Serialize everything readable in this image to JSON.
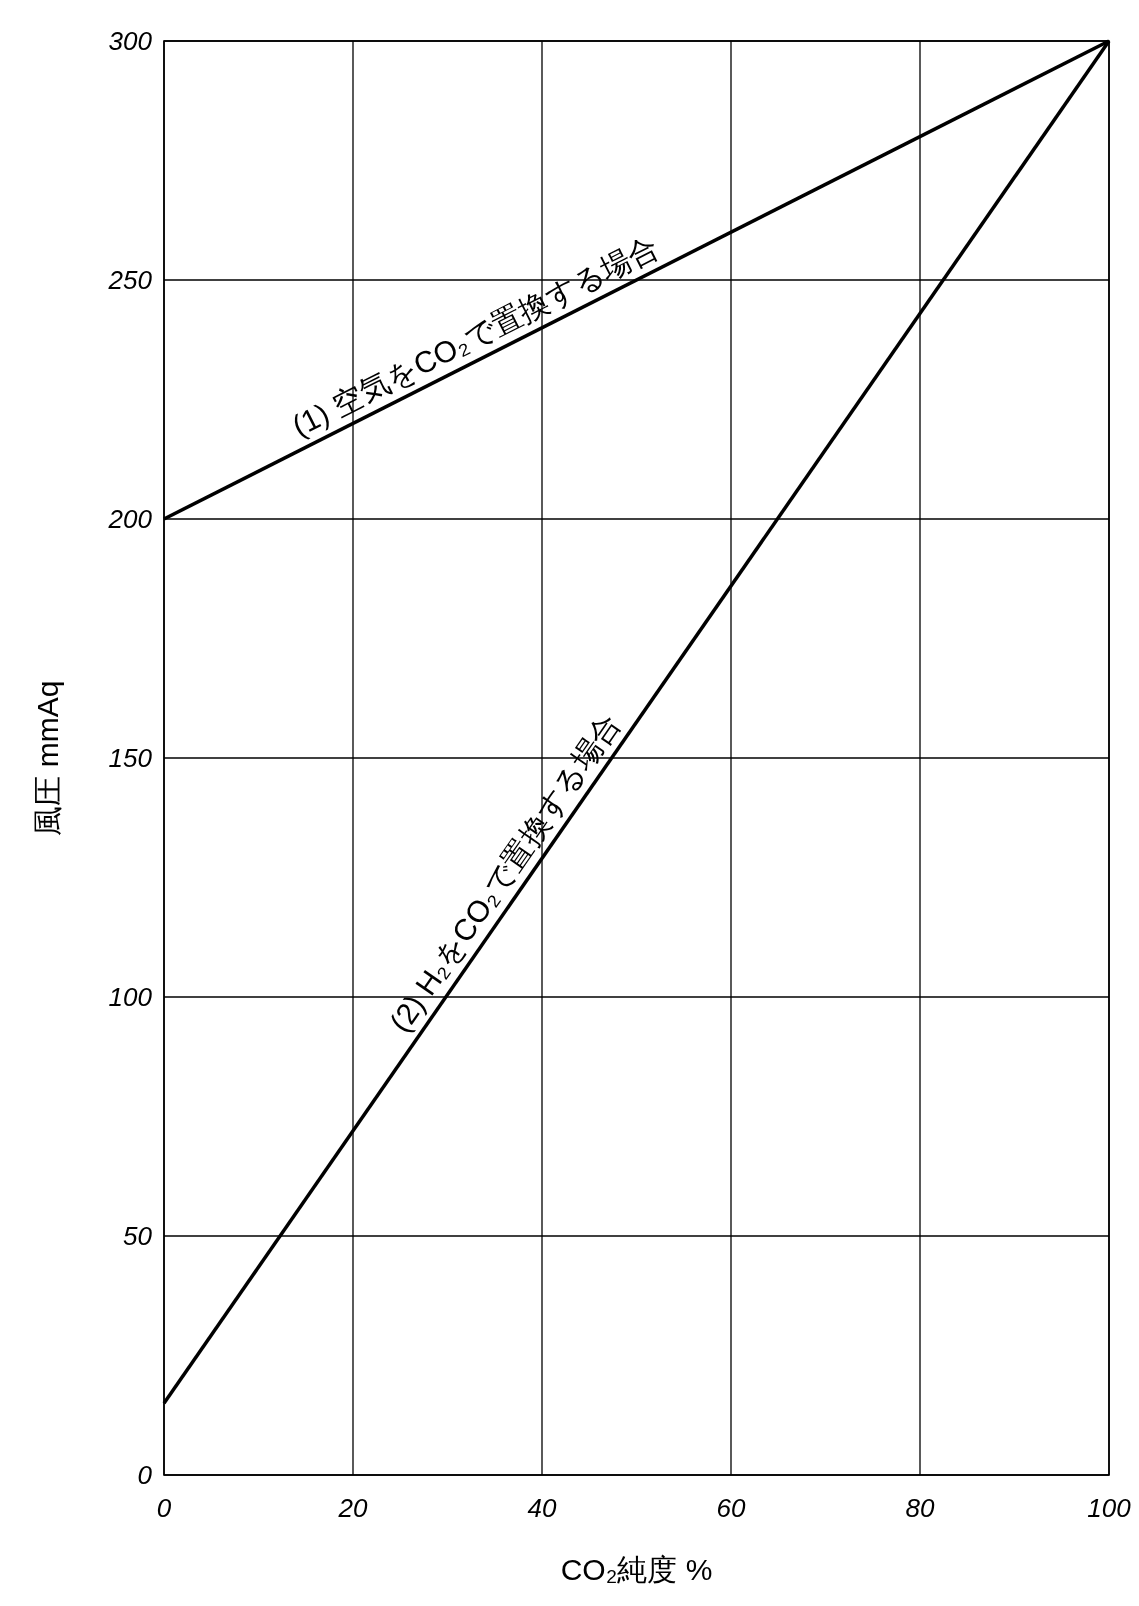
{
  "chart_data": {
    "type": "line",
    "xlabel": "CO₂純度 %",
    "ylabel": "風圧 mmAq",
    "x": [
      0,
      100
    ],
    "series": [
      {
        "name": "(1) 空気をCO₂で置換する場合",
        "color": "#000000",
        "values": [
          200,
          300
        ]
      },
      {
        "name": "(2) H₂をCO₂で置換する場合",
        "color": "#000000",
        "values": [
          15,
          300
        ]
      }
    ],
    "xlim": [
      0,
      100
    ],
    "xticks": [
      0,
      20,
      40,
      60,
      80,
      100
    ],
    "ylim": [
      0,
      300
    ],
    "yticks": [
      0,
      50,
      100,
      150,
      200,
      250,
      300
    ],
    "grid": true,
    "marker": "none",
    "line_style": "solid"
  }
}
